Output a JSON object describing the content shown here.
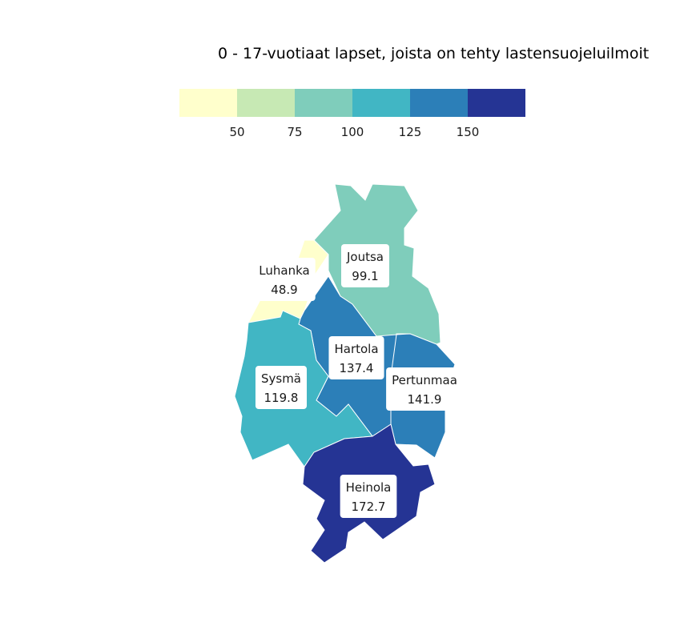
{
  "title": "0 - 17-vuotiaat lapset, joista on tehty lastensuojeluilmoit",
  "legend": {
    "bins": [
      {
        "color": "#ffffcc"
      },
      {
        "color": "#c7e9b4"
      },
      {
        "color": "#7fcdbb"
      },
      {
        "color": "#41b6c4"
      },
      {
        "color": "#2c7fb8"
      },
      {
        "color": "#253494"
      }
    ],
    "ticks": [
      "50",
      "75",
      "100",
      "125",
      "150"
    ]
  },
  "regions": [
    {
      "name": "Joutsa",
      "value": "99.1",
      "color": "#7fcdbb"
    },
    {
      "name": "Luhanka",
      "value": "48.9",
      "color": "#ffffcc"
    },
    {
      "name": "Hartola",
      "value": "137.4",
      "color": "#2c7fb8"
    },
    {
      "name": "Sysmä",
      "value": "119.8",
      "color": "#41b6c4"
    },
    {
      "name": "Pertunmaa",
      "value": "141.9",
      "color": "#2c7fb8"
    },
    {
      "name": "Heinola",
      "value": "172.7",
      "color": "#253494"
    }
  ]
}
